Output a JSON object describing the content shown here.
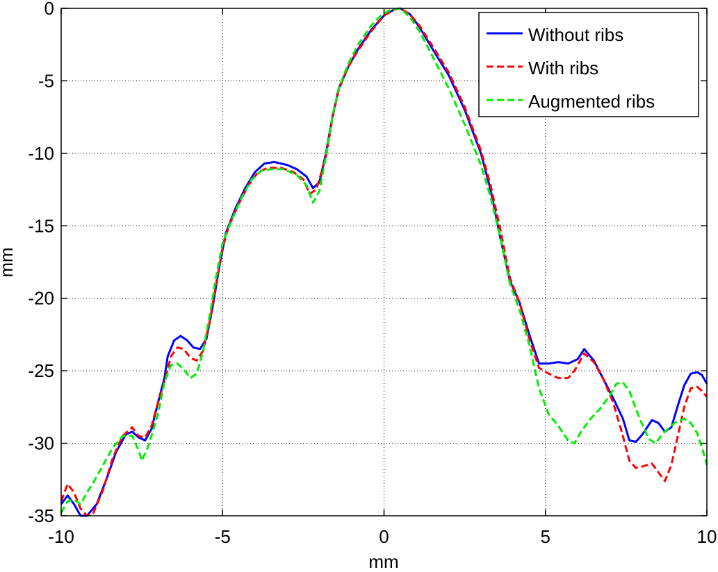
{
  "chart_data": {
    "type": "line",
    "title": "",
    "xlabel": "mm",
    "ylabel": "mm",
    "xlim": [
      -10,
      10
    ],
    "ylim": [
      -35,
      0
    ],
    "xticks": [
      -10,
      -5,
      0,
      5,
      10
    ],
    "yticks": [
      0,
      -5,
      -10,
      -15,
      -20,
      -25,
      -30,
      -35
    ],
    "xtick_labels": [
      "-10",
      "-5",
      "0",
      "5",
      "10"
    ],
    "ytick_labels": [
      "0",
      "-5",
      "-10",
      "-15",
      "-20",
      "-25",
      "-30",
      "-35"
    ],
    "grid": true,
    "legend_position": "top-right",
    "series": [
      {
        "name": "Without ribs",
        "color": "#0000ff",
        "dash": "solid",
        "points": [
          [
            -10,
            -34.2
          ],
          [
            -9.8,
            -33.6
          ],
          [
            -9.6,
            -34.2
          ],
          [
            -9.4,
            -35.0
          ],
          [
            -9.2,
            -35.0
          ],
          [
            -8.9,
            -34.2
          ],
          [
            -8.6,
            -32.5
          ],
          [
            -8.3,
            -30.6
          ],
          [
            -8.0,
            -29.4
          ],
          [
            -7.8,
            -29.2
          ],
          [
            -7.6,
            -29.6
          ],
          [
            -7.4,
            -29.8
          ],
          [
            -7.2,
            -29.0
          ],
          [
            -7.0,
            -27.2
          ],
          [
            -6.8,
            -25.5
          ],
          [
            -6.7,
            -24.0
          ],
          [
            -6.5,
            -22.9
          ],
          [
            -6.3,
            -22.6
          ],
          [
            -6.1,
            -22.9
          ],
          [
            -5.9,
            -23.4
          ],
          [
            -5.7,
            -23.5
          ],
          [
            -5.5,
            -22.8
          ],
          [
            -5.3,
            -20.5
          ],
          [
            -5.1,
            -17.8
          ],
          [
            -4.9,
            -15.5
          ],
          [
            -4.6,
            -13.8
          ],
          [
            -4.3,
            -12.4
          ],
          [
            -4.0,
            -11.3
          ],
          [
            -3.7,
            -10.7
          ],
          [
            -3.4,
            -10.6
          ],
          [
            -3.0,
            -10.8
          ],
          [
            -2.7,
            -11.1
          ],
          [
            -2.4,
            -11.6
          ],
          [
            -2.2,
            -12.4
          ],
          [
            -2.0,
            -12.0
          ],
          [
            -1.8,
            -10.0
          ],
          [
            -1.6,
            -7.5
          ],
          [
            -1.4,
            -5.5
          ],
          [
            -1.1,
            -4.0
          ],
          [
            -0.8,
            -2.8
          ],
          [
            -0.4,
            -1.5
          ],
          [
            0,
            -0.5
          ],
          [
            0.3,
            -0.1
          ],
          [
            0.5,
            0
          ],
          [
            0.8,
            -0.4
          ],
          [
            1.1,
            -1.3
          ],
          [
            1.5,
            -2.8
          ],
          [
            2.0,
            -4.6
          ],
          [
            2.5,
            -7.0
          ],
          [
            3.0,
            -10.0
          ],
          [
            3.3,
            -12.5
          ],
          [
            3.6,
            -15.8
          ],
          [
            3.9,
            -18.8
          ],
          [
            4.2,
            -20.3
          ],
          [
            4.5,
            -22.5
          ],
          [
            4.8,
            -24.5
          ],
          [
            5.1,
            -24.5
          ],
          [
            5.4,
            -24.4
          ],
          [
            5.7,
            -24.5
          ],
          [
            6.0,
            -24.2
          ],
          [
            6.2,
            -23.5
          ],
          [
            6.5,
            -24.3
          ],
          [
            6.8,
            -25.6
          ],
          [
            7.1,
            -26.9
          ],
          [
            7.4,
            -28.3
          ],
          [
            7.6,
            -29.8
          ],
          [
            7.8,
            -29.9
          ],
          [
            8.0,
            -29.4
          ],
          [
            8.3,
            -28.4
          ],
          [
            8.5,
            -28.6
          ],
          [
            8.7,
            -29.2
          ],
          [
            8.9,
            -28.9
          ],
          [
            9.1,
            -27.4
          ],
          [
            9.3,
            -26.0
          ],
          [
            9.5,
            -25.2
          ],
          [
            9.7,
            -25.1
          ],
          [
            9.85,
            -25.3
          ],
          [
            10,
            -25.9
          ]
        ]
      },
      {
        "name": "With ribs",
        "color": "#ff0000",
        "dash": "dashed",
        "points": [
          [
            -10,
            -34.0
          ],
          [
            -9.8,
            -32.8
          ],
          [
            -9.6,
            -33.4
          ],
          [
            -9.4,
            -34.5
          ],
          [
            -9.2,
            -35.0
          ],
          [
            -9.0,
            -34.8
          ],
          [
            -8.7,
            -33.2
          ],
          [
            -8.4,
            -31.0
          ],
          [
            -8.1,
            -29.5
          ],
          [
            -7.8,
            -28.9
          ],
          [
            -7.6,
            -29.5
          ],
          [
            -7.4,
            -29.6
          ],
          [
            -7.2,
            -28.8
          ],
          [
            -7.0,
            -27.2
          ],
          [
            -6.8,
            -25.8
          ],
          [
            -6.6,
            -24.0
          ],
          [
            -6.4,
            -23.4
          ],
          [
            -6.2,
            -23.5
          ],
          [
            -6.0,
            -24.1
          ],
          [
            -5.8,
            -24.3
          ],
          [
            -5.6,
            -23.6
          ],
          [
            -5.4,
            -21.6
          ],
          [
            -5.2,
            -19.0
          ],
          [
            -5.0,
            -16.5
          ],
          [
            -4.8,
            -15.0
          ],
          [
            -4.5,
            -13.5
          ],
          [
            -4.2,
            -12.2
          ],
          [
            -3.9,
            -11.3
          ],
          [
            -3.6,
            -11.0
          ],
          [
            -3.2,
            -11.0
          ],
          [
            -2.8,
            -11.3
          ],
          [
            -2.5,
            -11.8
          ],
          [
            -2.3,
            -12.8
          ],
          [
            -2.1,
            -12.5
          ],
          [
            -1.8,
            -10.3
          ],
          [
            -1.6,
            -7.6
          ],
          [
            -1.4,
            -5.6
          ],
          [
            -1.1,
            -4.0
          ],
          [
            -0.8,
            -2.9
          ],
          [
            -0.4,
            -1.6
          ],
          [
            0,
            -0.5
          ],
          [
            0.3,
            -0.1
          ],
          [
            0.5,
            0
          ],
          [
            0.8,
            -0.4
          ],
          [
            1.1,
            -1.2
          ],
          [
            1.5,
            -2.6
          ],
          [
            2.0,
            -4.4
          ],
          [
            2.5,
            -6.8
          ],
          [
            3.0,
            -9.8
          ],
          [
            3.3,
            -12.2
          ],
          [
            3.6,
            -15.2
          ],
          [
            3.9,
            -18.6
          ],
          [
            4.2,
            -20.3
          ],
          [
            4.5,
            -22.8
          ],
          [
            4.8,
            -24.8
          ],
          [
            5.1,
            -25.2
          ],
          [
            5.4,
            -25.5
          ],
          [
            5.7,
            -25.5
          ],
          [
            5.9,
            -25.0
          ],
          [
            6.2,
            -23.8
          ],
          [
            6.5,
            -24.4
          ],
          [
            6.8,
            -25.6
          ],
          [
            7.1,
            -27.2
          ],
          [
            7.4,
            -29.5
          ],
          [
            7.6,
            -31.2
          ],
          [
            7.8,
            -31.7
          ],
          [
            8.0,
            -31.6
          ],
          [
            8.3,
            -31.4
          ],
          [
            8.5,
            -32.0
          ],
          [
            8.7,
            -32.6
          ],
          [
            8.9,
            -31.5
          ],
          [
            9.1,
            -29.5
          ],
          [
            9.3,
            -27.5
          ],
          [
            9.5,
            -26.2
          ],
          [
            9.7,
            -26.1
          ],
          [
            9.85,
            -26.4
          ],
          [
            10,
            -26.8
          ]
        ]
      },
      {
        "name": "Augmented ribs",
        "color": "#00ee00",
        "dash": "dashed",
        "points": [
          [
            -10,
            -34.8
          ],
          [
            -9.8,
            -34.0
          ],
          [
            -9.6,
            -33.9
          ],
          [
            -9.4,
            -34.2
          ],
          [
            -9.2,
            -33.4
          ],
          [
            -9.0,
            -32.7
          ],
          [
            -8.7,
            -31.5
          ],
          [
            -8.4,
            -30.3
          ],
          [
            -8.1,
            -29.5
          ],
          [
            -7.8,
            -29.5
          ],
          [
            -7.6,
            -30.5
          ],
          [
            -7.5,
            -31.2
          ],
          [
            -7.3,
            -30.2
          ],
          [
            -7.0,
            -28.0
          ],
          [
            -6.8,
            -25.8
          ],
          [
            -6.6,
            -24.6
          ],
          [
            -6.4,
            -24.5
          ],
          [
            -6.2,
            -24.9
          ],
          [
            -6.0,
            -25.5
          ],
          [
            -5.8,
            -25.2
          ],
          [
            -5.6,
            -23.6
          ],
          [
            -5.4,
            -21.2
          ],
          [
            -5.2,
            -18.5
          ],
          [
            -5.0,
            -16.2
          ],
          [
            -4.7,
            -14.5
          ],
          [
            -4.4,
            -13.0
          ],
          [
            -4.1,
            -11.8
          ],
          [
            -3.8,
            -11.2
          ],
          [
            -3.5,
            -11.1
          ],
          [
            -3.1,
            -11.1
          ],
          [
            -2.7,
            -11.5
          ],
          [
            -2.4,
            -12.2
          ],
          [
            -2.2,
            -13.4
          ],
          [
            -2.0,
            -12.6
          ],
          [
            -1.8,
            -10.2
          ],
          [
            -1.6,
            -7.5
          ],
          [
            -1.4,
            -5.5
          ],
          [
            -1.1,
            -3.8
          ],
          [
            -0.8,
            -2.5
          ],
          [
            -0.4,
            -1.2
          ],
          [
            -0.1,
            -0.5
          ],
          [
            0.2,
            -0.1
          ],
          [
            0.5,
            0
          ],
          [
            0.8,
            -0.6
          ],
          [
            1.1,
            -1.6
          ],
          [
            1.5,
            -3.3
          ],
          [
            2.0,
            -5.5
          ],
          [
            2.5,
            -8.0
          ],
          [
            3.0,
            -10.8
          ],
          [
            3.3,
            -13.0
          ],
          [
            3.6,
            -15.8
          ],
          [
            3.9,
            -19.0
          ],
          [
            4.2,
            -20.8
          ],
          [
            4.5,
            -23.2
          ],
          [
            4.8,
            -26.2
          ],
          [
            5.1,
            -28.0
          ],
          [
            5.4,
            -28.8
          ],
          [
            5.7,
            -29.8
          ],
          [
            5.9,
            -30.0
          ],
          [
            6.1,
            -29.2
          ],
          [
            6.4,
            -28.3
          ],
          [
            6.7,
            -27.6
          ],
          [
            7.0,
            -26.7
          ],
          [
            7.2,
            -25.9
          ],
          [
            7.4,
            -25.8
          ],
          [
            7.6,
            -26.4
          ],
          [
            7.9,
            -28.2
          ],
          [
            8.2,
            -29.7
          ],
          [
            8.4,
            -30.0
          ],
          [
            8.7,
            -29.2
          ],
          [
            9.0,
            -28.6
          ],
          [
            9.3,
            -28.3
          ],
          [
            9.5,
            -28.6
          ],
          [
            9.7,
            -29.3
          ],
          [
            9.85,
            -30.3
          ],
          [
            10,
            -31.5
          ]
        ]
      }
    ]
  }
}
